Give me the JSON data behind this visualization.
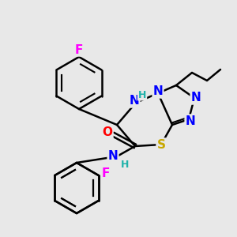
{
  "background_color": "#e8e8e8",
  "atom_colors": {
    "C": "#000000",
    "N": "#0000ff",
    "S": "#c8a800",
    "O": "#ff0000",
    "F": "#ff00ff",
    "H": "#20b2aa"
  },
  "bond_color": "#000000",
  "bond_width": 1.8,
  "font_size_atom": 11,
  "font_size_h": 9,
  "figsize": [
    3.0,
    3.0
  ],
  "dpi": 100
}
